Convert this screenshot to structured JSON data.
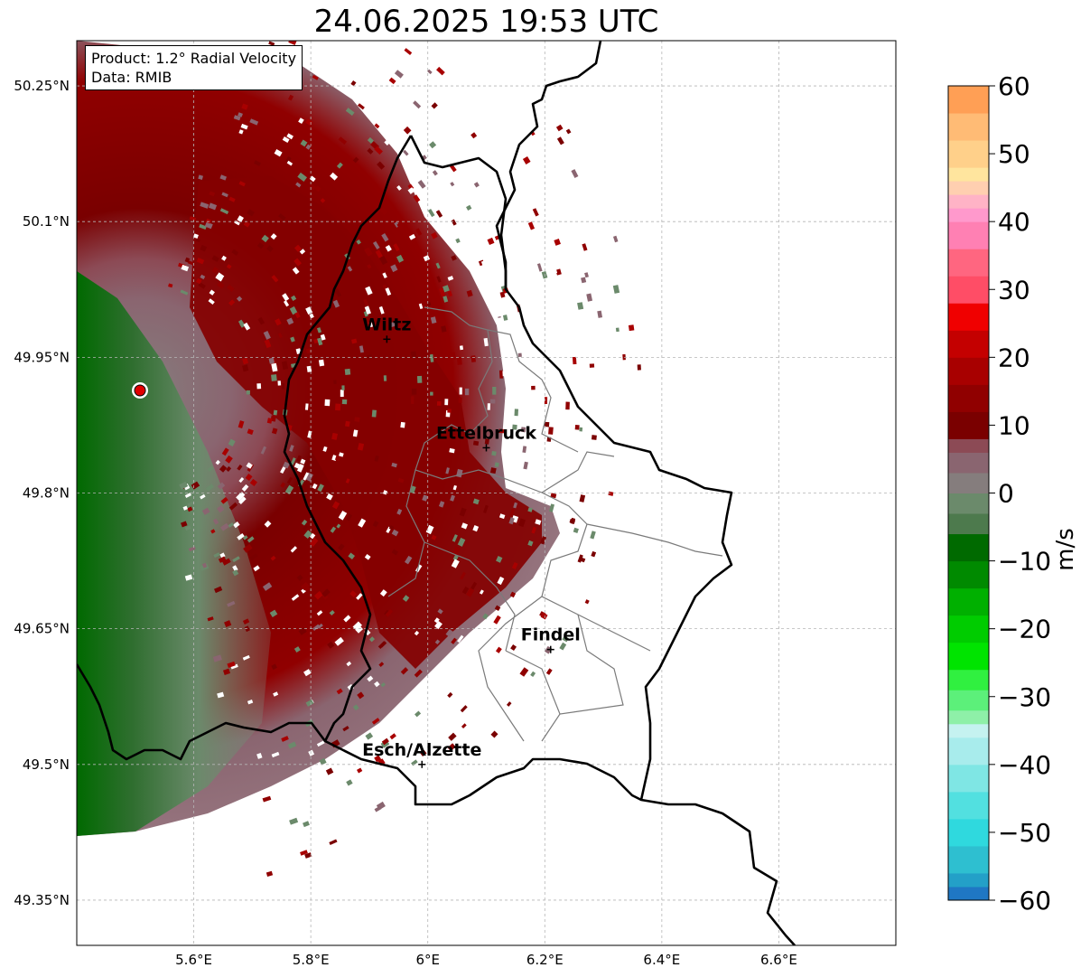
{
  "title": "24.06.2025 19:53 UTC",
  "info": {
    "product": "Product: 1.2° Radial Velocity",
    "data": "Data: RMIB"
  },
  "map": {
    "lon_range": [
      5.4,
      6.8
    ],
    "lat_range": [
      49.3,
      50.3
    ],
    "lon_ticks": [
      {
        "value": 5.6,
        "label": "5.6°E"
      },
      {
        "value": 5.8,
        "label": "5.8°E"
      },
      {
        "value": 6.0,
        "label": "6°E"
      },
      {
        "value": 6.2,
        "label": "6.2°E"
      },
      {
        "value": 6.4,
        "label": "6.4°E"
      },
      {
        "value": 6.6,
        "label": "6.6°E"
      }
    ],
    "lat_ticks": [
      {
        "value": 50.25,
        "label": "50.25°N"
      },
      {
        "value": 50.1,
        "label": "50.1°N"
      },
      {
        "value": 49.95,
        "label": "49.95°N"
      },
      {
        "value": 49.8,
        "label": "49.8°N"
      },
      {
        "value": 49.65,
        "label": "49.65°N"
      },
      {
        "value": 49.5,
        "label": "49.5°N"
      },
      {
        "value": 49.35,
        "label": "49.35°N"
      }
    ],
    "grid": true,
    "radar_site": {
      "lon": 5.505,
      "lat": 49.914
    },
    "cities": [
      {
        "name": "Wiltz",
        "lon": 5.93,
        "lat": 49.97
      },
      {
        "name": "Ettelbruck",
        "lon": 6.1,
        "lat": 49.85
      },
      {
        "name": "Findel",
        "lon": 6.21,
        "lat": 49.627
      },
      {
        "name": "Esch/Alzette",
        "lon": 5.99,
        "lat": 49.5
      }
    ]
  },
  "colorbar": {
    "label": "m/s",
    "min": -60,
    "max": 60,
    "ticks": [
      {
        "value": 60,
        "label": "60"
      },
      {
        "value": 50,
        "label": "50"
      },
      {
        "value": 40,
        "label": "40"
      },
      {
        "value": 30,
        "label": "30"
      },
      {
        "value": 20,
        "label": "20"
      },
      {
        "value": 10,
        "label": "10"
      },
      {
        "value": 0,
        "label": "0"
      },
      {
        "value": -10,
        "label": "−10"
      },
      {
        "value": -20,
        "label": "−20"
      },
      {
        "value": -30,
        "label": "−30"
      },
      {
        "value": -40,
        "label": "−40"
      },
      {
        "value": -50,
        "label": "−50"
      },
      {
        "value": -60,
        "label": "−60"
      }
    ],
    "stops": [
      {
        "from": -60,
        "to": -58,
        "color": "#1f77c4"
      },
      {
        "from": -58,
        "to": -56,
        "color": "#23a0c8"
      },
      {
        "from": -56,
        "to": -52,
        "color": "#2ebfd0"
      },
      {
        "from": -52,
        "to": -48,
        "color": "#2fd9de"
      },
      {
        "from": -48,
        "to": -44,
        "color": "#52e0e0"
      },
      {
        "from": -44,
        "to": -40,
        "color": "#7fe6e4"
      },
      {
        "from": -40,
        "to": -36,
        "color": "#a8ecec"
      },
      {
        "from": -36,
        "to": -34,
        "color": "#c5f2f0"
      },
      {
        "from": -34,
        "to": -32,
        "color": "#8ef0a8"
      },
      {
        "from": -32,
        "to": -29,
        "color": "#5cf07a"
      },
      {
        "from": -29,
        "to": -26,
        "color": "#30f040"
      },
      {
        "from": -26,
        "to": -22,
        "color": "#00e400"
      },
      {
        "from": -22,
        "to": -18,
        "color": "#00cc00"
      },
      {
        "from": -18,
        "to": -14,
        "color": "#00b000"
      },
      {
        "from": -14,
        "to": -10,
        "color": "#008a00"
      },
      {
        "from": -10,
        "to": -6,
        "color": "#006a00"
      },
      {
        "from": -6,
        "to": -3,
        "color": "#4d7a4d"
      },
      {
        "from": -3,
        "to": 0,
        "color": "#6b8a6b"
      },
      {
        "from": 0,
        "to": 3,
        "color": "#857d7d"
      },
      {
        "from": 3,
        "to": 6,
        "color": "#8a6570"
      },
      {
        "from": 6,
        "to": 8,
        "color": "#8c4a55"
      },
      {
        "from": 8,
        "to": 12,
        "color": "#7a0000"
      },
      {
        "from": 12,
        "to": 16,
        "color": "#900000"
      },
      {
        "from": 16,
        "to": 20,
        "color": "#a80000"
      },
      {
        "from": 20,
        "to": 24,
        "color": "#c40000"
      },
      {
        "from": 24,
        "to": 28,
        "color": "#f00000"
      },
      {
        "from": 28,
        "to": 32,
        "color": "#ff4d66"
      },
      {
        "from": 32,
        "to": 36,
        "color": "#ff6680"
      },
      {
        "from": 36,
        "to": 40,
        "color": "#ff80b3"
      },
      {
        "from": 40,
        "to": 42,
        "color": "#ff99cc"
      },
      {
        "from": 42,
        "to": 44,
        "color": "#ffb3c6"
      },
      {
        "from": 44,
        "to": 46,
        "color": "#ffcfb0"
      },
      {
        "from": 46,
        "to": 48,
        "color": "#ffe59e"
      },
      {
        "from": 48,
        "to": 52,
        "color": "#ffd08a"
      },
      {
        "from": 52,
        "to": 56,
        "color": "#ffbb75"
      },
      {
        "from": 56,
        "to": 60,
        "color": "#ff9f55"
      }
    ]
  }
}
